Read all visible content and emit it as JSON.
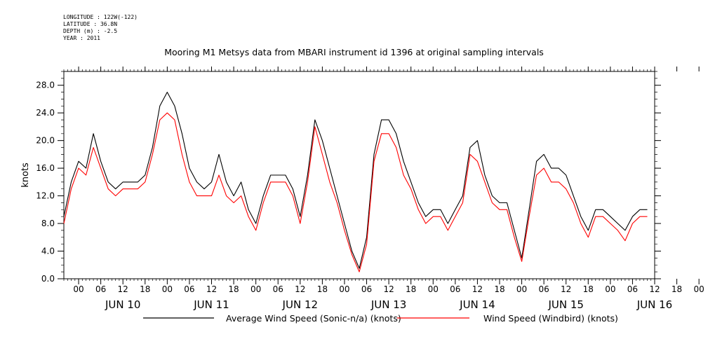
{
  "header": {
    "longitude": "LONGITUDE : 122W(-122)",
    "latitude": "LATITUDE : 36.8N",
    "depth": "DEPTH (m) : -2.5",
    "year": "YEAR : 2011"
  },
  "chart_data": {
    "type": "line",
    "title": "Mooring M1 Metsys data from MBARI instrument id 1396 at original sampling intervals",
    "xlabel": "",
    "ylabel": "knots",
    "ylim": [
      0,
      30
    ],
    "xlim_hours": [
      -4,
      156
    ],
    "y_ticks": [
      0,
      4,
      8,
      12,
      16,
      20,
      24,
      28
    ],
    "y_tick_labels": [
      "0.0",
      "4.0",
      "8.0",
      "12.0",
      "16.0",
      "20.0",
      "24.0",
      "28.0"
    ],
    "x_hour_labels": [
      "00",
      "06",
      "12",
      "18",
      "00",
      "06",
      "12",
      "18",
      "00",
      "06",
      "12",
      "18",
      "00",
      "06",
      "12",
      "18",
      "00",
      "06",
      "12",
      "18",
      "00",
      "06",
      "12",
      "18",
      "00",
      "06",
      "12",
      "18",
      "00",
      "06",
      "12",
      "18"
    ],
    "day_labels": [
      "JUN 10",
      "JUN 11",
      "JUN 12",
      "JUN 13",
      "JUN 14",
      "JUN 15",
      "JUN 16"
    ],
    "legend_position": "bottom",
    "series": [
      {
        "name": "Average Wind Speed (Sonic-n/a) (knots)",
        "color": "#000000",
        "x": [
          -4,
          -2,
          0,
          2,
          4,
          6,
          8,
          10,
          12,
          14,
          16,
          18,
          20,
          22,
          24,
          26,
          28,
          30,
          32,
          34,
          36,
          38,
          40,
          42,
          44,
          46,
          48,
          50,
          52,
          54,
          56,
          58,
          60,
          62,
          64,
          66,
          68,
          70,
          72,
          74,
          76,
          78,
          80,
          82,
          84,
          86,
          88,
          90,
          92,
          94,
          96,
          98,
          100,
          102,
          104,
          106,
          108,
          110,
          112,
          114,
          116,
          118,
          120,
          122,
          124,
          126,
          128,
          130,
          132,
          134,
          136,
          138,
          140,
          142,
          144,
          146,
          148,
          150,
          152,
          154
        ],
        "y": [
          9,
          14,
          17,
          16,
          21,
          17,
          14,
          13,
          14,
          14,
          14,
          15,
          19,
          25,
          27,
          25,
          21,
          16,
          14,
          13,
          14,
          18,
          14,
          12,
          14,
          10,
          8,
          12,
          15,
          15,
          15,
          13,
          9,
          15,
          23,
          20,
          16,
          12,
          8,
          4,
          1.5,
          6,
          18,
          23,
          23,
          21,
          17,
          14,
          11,
          9,
          10,
          10,
          8,
          10,
          12,
          19,
          20,
          15,
          12,
          11,
          11,
          7,
          3,
          10,
          17,
          18,
          16,
          16,
          15,
          12,
          9,
          7,
          10,
          10,
          9,
          8,
          7,
          9,
          10,
          10
        ]
      },
      {
        "name": "Wind Speed (Windbird) (knots)",
        "color": "#ff0000",
        "x": [
          -4,
          -2,
          0,
          2,
          4,
          6,
          8,
          10,
          12,
          14,
          16,
          18,
          20,
          22,
          24,
          26,
          28,
          30,
          32,
          34,
          36,
          38,
          40,
          42,
          44,
          46,
          48,
          50,
          52,
          54,
          56,
          58,
          60,
          62,
          64,
          66,
          68,
          70,
          72,
          74,
          76,
          78,
          80,
          82,
          84,
          86,
          88,
          90,
          92,
          94,
          96,
          98,
          100,
          102,
          104,
          106,
          108,
          110,
          112,
          114,
          116,
          118,
          120,
          122,
          124,
          126,
          128,
          130,
          132,
          134,
          136,
          138,
          140,
          142,
          144,
          146,
          148,
          150,
          152,
          154
        ],
        "y": [
          8,
          13,
          16,
          15,
          19,
          16,
          13,
          12,
          13,
          13,
          13,
          14,
          18,
          23,
          24,
          23,
          18,
          14,
          12,
          12,
          12,
          15,
          12,
          11,
          12,
          9,
          7,
          11,
          14,
          14,
          14,
          12,
          8,
          14,
          22,
          18,
          14,
          11,
          7,
          3.5,
          1,
          5,
          17,
          21,
          21,
          19,
          15,
          13,
          10,
          8,
          9,
          9,
          7,
          9,
          11,
          18,
          17,
          14,
          11,
          10,
          10,
          6,
          2.5,
          9,
          15,
          16,
          14,
          14,
          13,
          11,
          8,
          6,
          9,
          9,
          8,
          7,
          5.5,
          8,
          9,
          9
        ]
      }
    ]
  }
}
